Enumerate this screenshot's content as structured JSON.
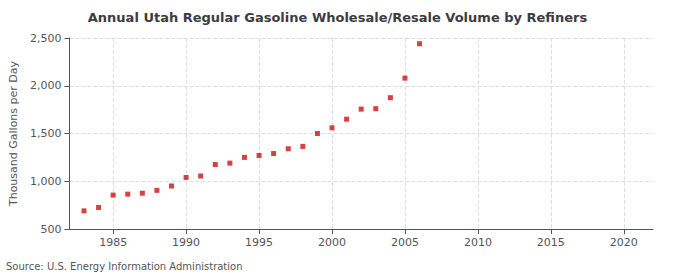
{
  "chart_data": {
    "type": "scatter",
    "title": "Annual Utah Regular Gasoline Wholesale/Resale Volume by Refiners",
    "ylabel": "Thousand Gallons per Day",
    "annotations": [
      "Source: U.S. Energy Information Administration"
    ],
    "color": "#cc1111",
    "marker": "square",
    "grid": true,
    "x": [
      1983,
      1984,
      1985,
      1986,
      1987,
      1988,
      1989,
      1990,
      1991,
      1992,
      1993,
      1994,
      1995,
      1996,
      1997,
      1998,
      1999,
      2000,
      2001,
      2002,
      2003,
      2004,
      2005,
      2006
    ],
    "values": [
      690,
      725,
      855,
      865,
      875,
      905,
      950,
      1040,
      1055,
      1175,
      1190,
      1250,
      1270,
      1290,
      1340,
      1365,
      1500,
      1560,
      1650,
      1755,
      1760,
      1875,
      2080,
      2440
    ],
    "xlim": [
      1982,
      2022
    ],
    "ylim": [
      500,
      2500
    ],
    "xticks": [
      1985,
      1990,
      1995,
      2000,
      2005,
      2010,
      2015,
      2020
    ],
    "yticks": [
      500,
      {
        "value": 1000,
        "label": "1,000"
      },
      {
        "value": 1500,
        "label": "1,500"
      },
      {
        "value": 2000,
        "label": "2,000"
      },
      {
        "value": 2500,
        "label": "2,500"
      }
    ]
  }
}
